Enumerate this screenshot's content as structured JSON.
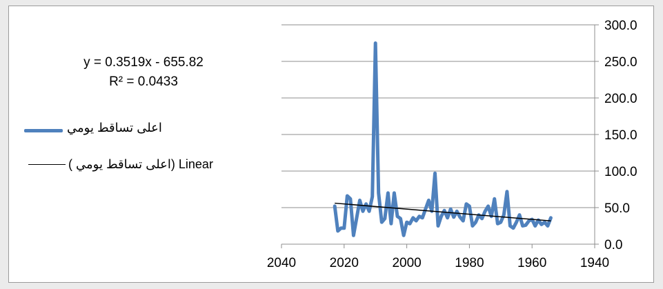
{
  "chart_data": {
    "type": "line",
    "x_axis": {
      "min": 1940,
      "max": 2040,
      "reversed": true,
      "ticks": [
        2040,
        2020,
        2000,
        1980,
        1960,
        1940
      ],
      "tick_labels": [
        "2040",
        "2020",
        "2000",
        "1980",
        "1960",
        "1940"
      ]
    },
    "y_axis": {
      "min": 0,
      "max": 300,
      "ticks": [
        0,
        50,
        100,
        150,
        200,
        250,
        300
      ],
      "tick_labels": [
        "0.0",
        "50.0",
        "100.0",
        "150.0",
        "200.0",
        "250.0",
        "300.0"
      ],
      "position": "right"
    },
    "grid": true,
    "legend_position": "left",
    "series": [
      {
        "name": "اعلى تساقط يومي",
        "color": "#4f81bd",
        "x": [
          2023,
          2022,
          2021,
          2020,
          2019,
          2018,
          2017,
          2016,
          2015,
          2014,
          2013,
          2012,
          2011,
          2010,
          2009,
          2008,
          2007,
          2006,
          2005,
          2004,
          2003,
          2002,
          2001,
          2000,
          1999,
          1998,
          1997,
          1996,
          1995,
          1994,
          1993,
          1992,
          1991,
          1990,
          1989,
          1988,
          1987,
          1986,
          1985,
          1984,
          1983,
          1982,
          1981,
          1980,
          1979,
          1978,
          1977,
          1976,
          1975,
          1974,
          1973,
          1972,
          1971,
          1970,
          1969,
          1968,
          1967,
          1966,
          1965,
          1964,
          1963,
          1962,
          1961,
          1960,
          1959,
          1958,
          1957,
          1956,
          1955,
          1954
        ],
        "y": [
          52,
          18,
          22,
          22,
          66,
          62,
          12,
          36,
          60,
          45,
          55,
          45,
          65,
          275,
          70,
          30,
          35,
          70,
          28,
          70,
          38,
          35,
          12,
          30,
          28,
          36,
          32,
          38,
          36,
          48,
          60,
          45,
          97,
          25,
          38,
          46,
          36,
          48,
          37,
          45,
          37,
          32,
          55,
          52,
          25,
          30,
          40,
          35,
          45,
          52,
          38,
          62,
          28,
          30,
          40,
          72,
          25,
          22,
          30,
          40,
          25,
          26,
          32,
          34,
          25,
          33,
          27,
          30,
          25,
          36
        ]
      }
    ],
    "trendline": {
      "name": "Linear (اعلى تساقط يومي)",
      "color": "#000000",
      "slope": 0.3519,
      "intercept": -655.82,
      "x_start": 2023,
      "x_end": 1954,
      "equation": "y = 0.3519x - 655.82",
      "r_squared": "R² = 0.0433"
    }
  },
  "legend": {
    "series_label": "اعلى تساقط يومي",
    "trend_label": "( اعلى تساقط يومي) Linear"
  }
}
